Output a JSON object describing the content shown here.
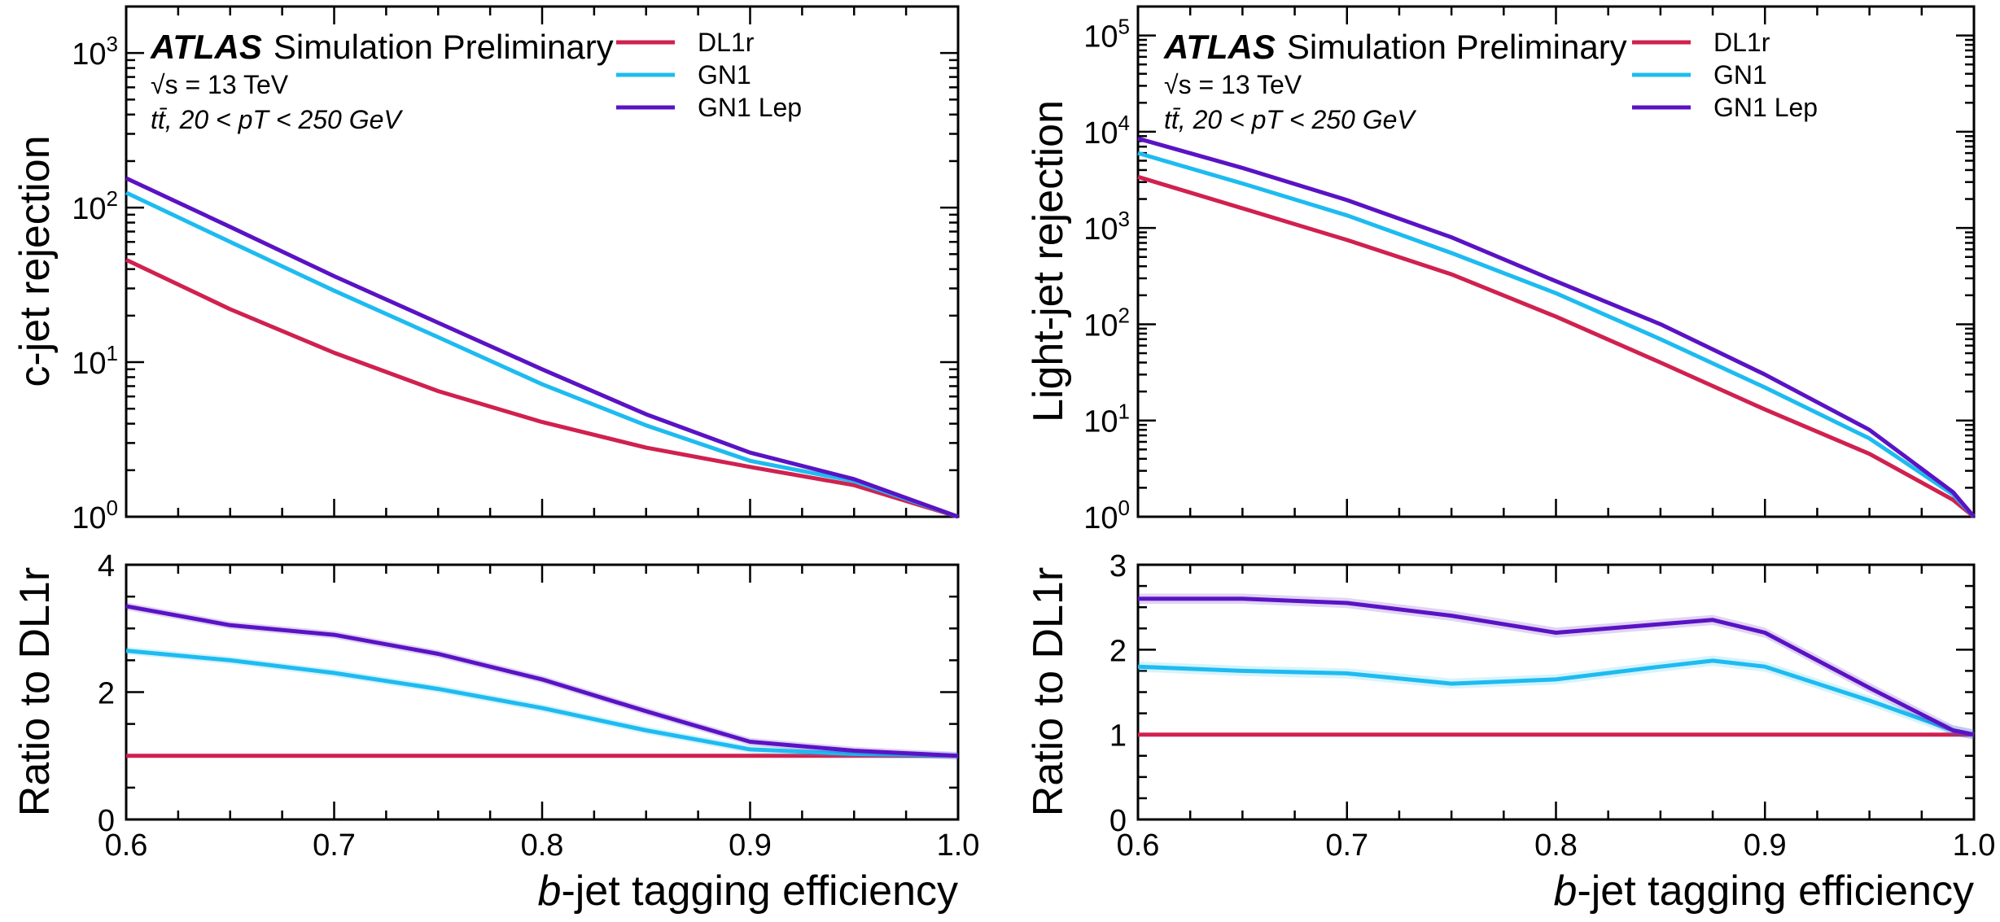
{
  "figure": {
    "shared_xlabel_pre": "b",
    "shared_xlabel_post": "-jet tagging efficiency",
    "ratio_ylabel": "Ratio to DL1r",
    "atlas_label": "ATLAS",
    "atlas_sublabel": "Simulation Preliminary",
    "energy_label": "√s = 13 TeV",
    "selection_label": "tt̄, 20 < pT < 250 GeV"
  },
  "colors": {
    "DL1r": "#d0214f",
    "GN1": "#1ebbf0",
    "GN1 Lep": "#5a13c4"
  },
  "chart_data": [
    {
      "type": "line",
      "panel": "left-top",
      "ylabel": "c-jet rejection",
      "yscale": "log",
      "xlim": [
        0.6,
        1.0
      ],
      "ylim": [
        1,
        2000
      ],
      "x_ticks": [
        "0.6",
        "0.7",
        "0.8",
        "0.9",
        "1.0"
      ],
      "y_ticks": [
        "10^0",
        "10^1",
        "10^2",
        "10^3"
      ],
      "legend": [
        "DL1r",
        "GN1",
        "GN1 Lep"
      ],
      "legend_position": "top-right",
      "x": [
        0.6,
        0.65,
        0.7,
        0.75,
        0.8,
        0.85,
        0.9,
        0.95,
        1.0
      ],
      "series": [
        {
          "name": "DL1r",
          "values": [
            46,
            22,
            11.5,
            6.5,
            4.1,
            2.8,
            2.1,
            1.6,
            1.0
          ]
        },
        {
          "name": "GN1",
          "values": [
            125,
            60,
            29,
            14.5,
            7.2,
            3.9,
            2.3,
            1.7,
            1.0
          ]
        },
        {
          "name": "GN1 Lep",
          "values": [
            155,
            75,
            36,
            18,
            9.0,
            4.6,
            2.6,
            1.75,
            1.0
          ]
        }
      ]
    },
    {
      "type": "line",
      "panel": "left-bottom",
      "ylabel": "Ratio to DL1r",
      "xlabel": "b-jet tagging efficiency",
      "xlim": [
        0.6,
        1.0
      ],
      "ylim": [
        0,
        4
      ],
      "x_ticks": [
        "0.6",
        "0.7",
        "0.8",
        "0.9",
        "1.0"
      ],
      "y_ticks": [
        "0",
        "2",
        "4"
      ],
      "x": [
        0.6,
        0.65,
        0.7,
        0.75,
        0.8,
        0.85,
        0.9,
        0.95,
        1.0
      ],
      "series": [
        {
          "name": "DL1r",
          "values": [
            1.0,
            1.0,
            1.0,
            1.0,
            1.0,
            1.0,
            1.0,
            1.0,
            1.0
          ]
        },
        {
          "name": "GN1",
          "values": [
            2.65,
            2.5,
            2.3,
            2.05,
            1.75,
            1.4,
            1.1,
            1.03,
            1.0
          ]
        },
        {
          "name": "GN1 Lep",
          "values": [
            3.35,
            3.05,
            2.9,
            2.6,
            2.2,
            1.7,
            1.22,
            1.08,
            1.0
          ]
        }
      ]
    },
    {
      "type": "line",
      "panel": "right-top",
      "ylabel": "Light-jet rejection",
      "yscale": "log",
      "xlim": [
        0.6,
        1.0
      ],
      "ylim": [
        1,
        200000
      ],
      "x_ticks": [
        "0.6",
        "0.7",
        "0.8",
        "0.9",
        "1.0"
      ],
      "y_ticks": [
        "10^0",
        "10^1",
        "10^2",
        "10^3",
        "10^4",
        "10^5"
      ],
      "legend": [
        "DL1r",
        "GN1",
        "GN1 Lep"
      ],
      "legend_position": "top-right",
      "x": [
        0.6,
        0.65,
        0.7,
        0.75,
        0.8,
        0.85,
        0.9,
        0.95,
        0.99,
        1.0
      ],
      "series": [
        {
          "name": "DL1r",
          "values": [
            3400,
            1600,
            750,
            330,
            120,
            40,
            13,
            4.5,
            1.5,
            1.0
          ]
        },
        {
          "name": "GN1",
          "values": [
            6000,
            2900,
            1350,
            550,
            210,
            70,
            22,
            6.5,
            1.7,
            1.0
          ]
        },
        {
          "name": "GN1 Lep",
          "values": [
            8500,
            4200,
            1950,
            800,
            280,
            100,
            30,
            8.0,
            1.8,
            1.0
          ]
        }
      ]
    },
    {
      "type": "line",
      "panel": "right-bottom",
      "ylabel": "Ratio to DL1r",
      "xlabel": "b-jet tagging efficiency",
      "xlim": [
        0.6,
        1.0
      ],
      "ylim": [
        0,
        3
      ],
      "x_ticks": [
        "0.6",
        "0.7",
        "0.8",
        "0.9",
        "1.0"
      ],
      "y_ticks": [
        "0",
        "1",
        "2",
        "3"
      ],
      "x": [
        0.6,
        0.65,
        0.7,
        0.75,
        0.8,
        0.85,
        0.875,
        0.9,
        0.95,
        0.99,
        1.0
      ],
      "series": [
        {
          "name": "DL1r",
          "values": [
            1.0,
            1.0,
            1.0,
            1.0,
            1.0,
            1.0,
            1.0,
            1.0,
            1.0,
            1.0,
            1.0
          ]
        },
        {
          "name": "GN1",
          "values": [
            1.8,
            1.75,
            1.72,
            1.6,
            1.65,
            1.8,
            1.87,
            1.8,
            1.4,
            1.05,
            1.0
          ]
        },
        {
          "name": "GN1 Lep",
          "values": [
            2.6,
            2.6,
            2.55,
            2.4,
            2.2,
            2.3,
            2.35,
            2.2,
            1.55,
            1.05,
            1.0
          ]
        }
      ]
    }
  ]
}
